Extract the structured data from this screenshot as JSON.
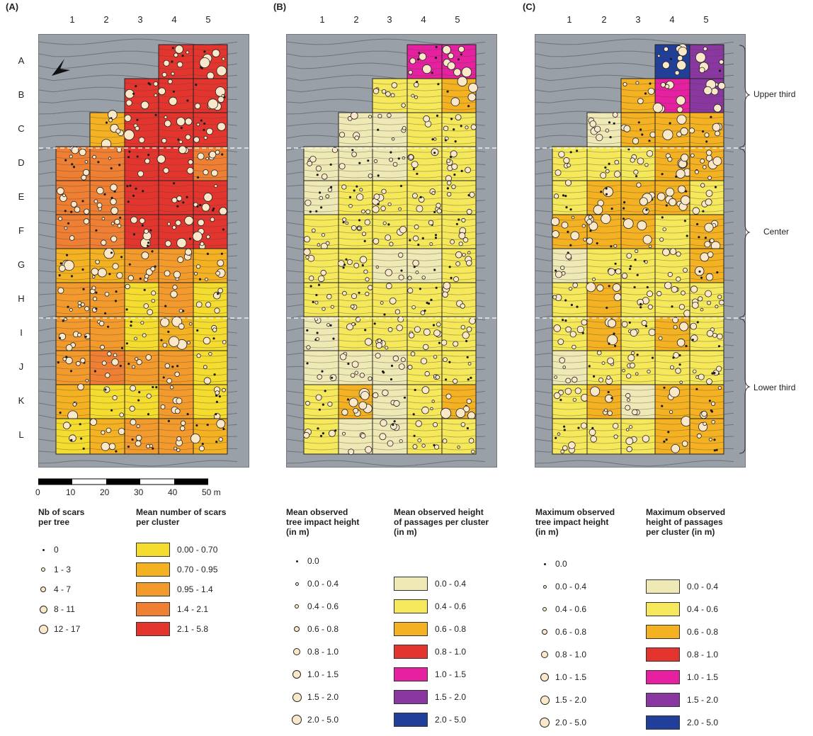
{
  "panels": [
    {
      "id": "A",
      "label": "(A)",
      "columns": [
        "1",
        "2",
        "3",
        "4",
        "5"
      ],
      "rows": [
        "A",
        "B",
        "C",
        "D",
        "E",
        "F",
        "G",
        "H",
        "I",
        "J",
        "K",
        "L"
      ],
      "grid": [
        [
          "",
          "",
          "",
          "#e3342e",
          "#e3342e"
        ],
        [
          "",
          "",
          "#e3342e",
          "#e3342e",
          "#e3342e"
        ],
        [
          "",
          "#f4b222",
          "#e3342e",
          "#e3342e",
          "#e3342e"
        ],
        [
          "#ef7f33",
          "#ef7f33",
          "#e3342e",
          "#e3342e",
          "#ef7f33"
        ],
        [
          "#ef7f33",
          "#ef7f33",
          "#e3342e",
          "#e3342e",
          "#e3342e"
        ],
        [
          "#ef7f33",
          "#ef7f33",
          "#e3342e",
          "#e3342e",
          "#e3342e"
        ],
        [
          "#f4b222",
          "#f4b222",
          "#f39a2c",
          "#f39a2c",
          "#f4b222"
        ],
        [
          "#f39a2c",
          "#f39a2c",
          "#f5dd2f",
          "#f39a2c",
          "#f5dd2f"
        ],
        [
          "#f39a2c",
          "#f39a2c",
          "#f5dd2f",
          "#f4b222",
          "#f5dd2f"
        ],
        [
          "#f39a2c",
          "#ef7f33",
          "#f39a2c",
          "#f39a2c",
          "#f5dd2f"
        ],
        [
          "#f4b222",
          "#f5dd2f",
          "#f5dd2f",
          "#f39a2c",
          "#f5dd2f"
        ],
        [
          "#f5dd2f",
          "#f4b222",
          "#f39a2c",
          "#f39a2c",
          "#f4b222"
        ]
      ]
    },
    {
      "id": "B",
      "label": "(B)",
      "columns": [
        "1",
        "2",
        "3",
        "4",
        "5"
      ],
      "rows": [
        "A",
        "B",
        "C",
        "D",
        "E",
        "F",
        "G",
        "H",
        "I",
        "J",
        "K",
        "L"
      ],
      "grid": [
        [
          "",
          "",
          "",
          "#e620a0",
          "#e620a0"
        ],
        [
          "",
          "",
          "#f5e85a",
          "#f5e85a",
          "#f4b222"
        ],
        [
          "",
          "#efe9b6",
          "#efe9b6",
          "#f5e85a",
          "#f5e85a"
        ],
        [
          "#efe9b6",
          "#efe9b6",
          "#efe9b6",
          "#f5e85a",
          "#f5e85a"
        ],
        [
          "#efe9b6",
          "#f5e85a",
          "#f5e85a",
          "#f5e85a",
          "#f5e85a"
        ],
        [
          "#f5e85a",
          "#f5e85a",
          "#f5e85a",
          "#f5e85a",
          "#f5e85a"
        ],
        [
          "#f5e85a",
          "#f5e85a",
          "#efe9b6",
          "#efe9b6",
          "#f5e85a"
        ],
        [
          "#f5e85a",
          "#f5e85a",
          "#f5e85a",
          "#f5e85a",
          "#f5e85a"
        ],
        [
          "#efe9b6",
          "#f5e85a",
          "#f5e85a",
          "#f5e85a",
          "#f5e85a"
        ],
        [
          "#efe9b6",
          "#efe9b6",
          "#efe9b6",
          "#f5e85a",
          "#f5e85a"
        ],
        [
          "#f5e85a",
          "#f4b222",
          "#efe9b6",
          "#f5e85a",
          "#f4b222"
        ],
        [
          "#f5e85a",
          "#efe9b6",
          "#efe9b6",
          "#f5e85a",
          "#f5e85a"
        ]
      ]
    },
    {
      "id": "C",
      "label": "(C)",
      "columns": [
        "1",
        "2",
        "3",
        "4",
        "5"
      ],
      "rows": [
        "A",
        "B",
        "C",
        "D",
        "E",
        "F",
        "G",
        "H",
        "I",
        "J",
        "K",
        "L"
      ],
      "grid": [
        [
          "",
          "",
          "",
          "#1f3f9a",
          "#8a37a2"
        ],
        [
          "",
          "",
          "#f4b222",
          "#e620a0",
          "#8a37a2"
        ],
        [
          "",
          "#efe9b6",
          "#f4b222",
          "#f4b222",
          "#f4b222"
        ],
        [
          "#f5e85a",
          "#f5e85a",
          "#f5e85a",
          "#f4b222",
          "#f4b222"
        ],
        [
          "#f5e85a",
          "#f4b222",
          "#f4b222",
          "#f4b222",
          "#f5e85a"
        ],
        [
          "#f4b222",
          "#f4b222",
          "#f4b222",
          "#f5e85a",
          "#f4b222"
        ],
        [
          "#efe9b6",
          "#f5e85a",
          "#f5e85a",
          "#f5e85a",
          "#f4b222"
        ],
        [
          "#f5e85a",
          "#f4b222",
          "#f5e85a",
          "#f5e85a",
          "#f5e85a"
        ],
        [
          "#f5e85a",
          "#f4b222",
          "#f5e85a",
          "#f4b222",
          "#f5e85a"
        ],
        [
          "#efe9b6",
          "#f5e85a",
          "#f5e85a",
          "#f5e85a",
          "#f5e85a"
        ],
        [
          "#f5e85a",
          "#f4b222",
          "#efe9b6",
          "#f4b222",
          "#f4b222"
        ],
        [
          "#f5e85a",
          "#f5e85a",
          "#f5e85a",
          "#f4b222",
          "#f4b222"
        ]
      ]
    }
  ],
  "zones": [
    "Upper third",
    "Center",
    "Lower third"
  ],
  "scale": {
    "ticks": [
      "0",
      "10",
      "20",
      "30",
      "40",
      "50 m"
    ]
  },
  "legends": {
    "a_symbols": {
      "title": [
        "Nb of scars",
        "per tree"
      ],
      "items": [
        "0",
        "1 - 3",
        "4 - 7",
        "8 - 11",
        "12 - 17"
      ]
    },
    "a_colors": {
      "title": [
        "Mean number of scars",
        "per cluster"
      ],
      "items": [
        {
          "label": "0.00 - 0.70",
          "color": "#f5dd2f"
        },
        {
          "label": "0.70 - 0.95",
          "color": "#f4b222"
        },
        {
          "label": "0.95 - 1.4",
          "color": "#f39a2c"
        },
        {
          "label": "1.4 - 2.1",
          "color": "#ef7f33"
        },
        {
          "label": "2.1 - 5.8",
          "color": "#e3342e"
        }
      ]
    },
    "b_symbols": {
      "title": [
        "Mean observed",
        "tree impact height",
        "(in m)"
      ],
      "items": [
        "0.0",
        "0.0 - 0.4",
        "0.4 - 0.6",
        "0.6 - 0.8",
        "0.8 - 1.0",
        "1.0 - 1.5",
        "1.5 - 2.0",
        "2.0 - 5.0"
      ]
    },
    "b_colors": {
      "title": [
        "Mean observed height",
        "of passages per cluster",
        "(in m)"
      ],
      "items": [
        {
          "label": "0.0 - 0.4",
          "color": "#efe9b6"
        },
        {
          "label": "0.4 - 0.6",
          "color": "#f5e85a"
        },
        {
          "label": "0.6 - 0.8",
          "color": "#f4b222"
        },
        {
          "label": "0.8 - 1.0",
          "color": "#e3342e"
        },
        {
          "label": "1.0 - 1.5",
          "color": "#e620a0"
        },
        {
          "label": "1.5 - 2.0",
          "color": "#8a37a2"
        },
        {
          "label": "2.0 - 5.0",
          "color": "#1f3f9a"
        }
      ]
    },
    "c_symbols": {
      "title": [
        "Maximum observed",
        "tree impact height",
        "(in m)"
      ],
      "items": [
        "0.0",
        "0.0 - 0.4",
        "0.4 - 0.6",
        "0.6 - 0.8",
        "0.8 - 1.0",
        "1.0 - 1.5",
        "1.5 - 2.0",
        "2.0 - 5.0"
      ]
    },
    "c_colors": {
      "title": [
        "Maximum observed",
        "height of passages",
        "per cluster (in m)"
      ],
      "items": [
        {
          "label": "0.0 - 0.4",
          "color": "#efe9b6"
        },
        {
          "label": "0.4 - 0.6",
          "color": "#f5e85a"
        },
        {
          "label": "0.6 - 0.8",
          "color": "#f4b222"
        },
        {
          "label": "0.8 - 1.0",
          "color": "#e3342e"
        },
        {
          "label": "1.0 - 1.5",
          "color": "#e620a0"
        },
        {
          "label": "1.5 - 2.0",
          "color": "#8a37a2"
        },
        {
          "label": "2.0 - 5.0",
          "color": "#1f3f9a"
        }
      ]
    }
  }
}
